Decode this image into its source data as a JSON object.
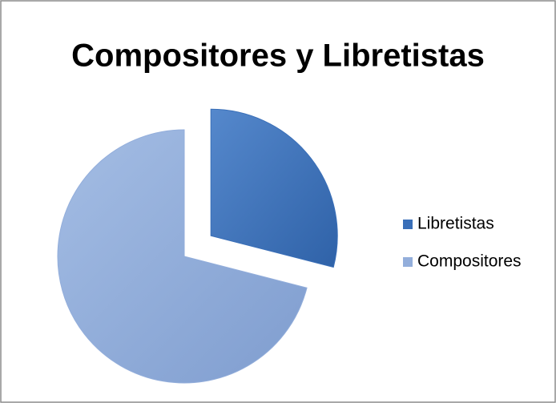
{
  "chart_data": {
    "type": "pie",
    "title": "Compositores y Libretistas",
    "categories": [
      "Libretistas",
      "Compositores"
    ],
    "values": [
      29,
      71
    ],
    "colors": [
      "#3a6fb8",
      "#93aedb"
    ],
    "exploded": [
      true,
      false
    ],
    "legend": "right"
  }
}
